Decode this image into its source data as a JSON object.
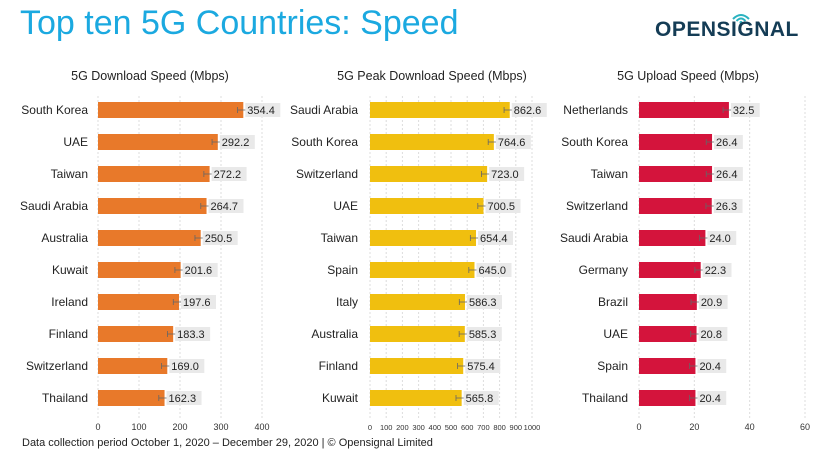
{
  "title": "Top ten 5G Countries: Speed",
  "brand": {
    "name": "OPENSIGNAL"
  },
  "footer": "Data collection period October 1, 2020 – December 29, 2020  |  © Opensignal Limited",
  "chart_data": [
    {
      "type": "bar",
      "orientation": "horizontal",
      "title": "5G Download Speed (Mbps)",
      "categories": [
        "South Korea",
        "UAE",
        "Taiwan",
        "Saudi Arabia",
        "Australia",
        "Kuwait",
        "Ireland",
        "Finland",
        "Switzerland",
        "Thailand"
      ],
      "values": [
        354.4,
        292.2,
        272.2,
        264.7,
        250.5,
        201.6,
        197.6,
        183.3,
        169.0,
        162.3
      ],
      "labels": [
        "354.4",
        "292.2",
        "272.2",
        "264.7",
        "250.5",
        "201.6",
        "197.6",
        "183.3",
        "169.0",
        "162.3"
      ],
      "xlim": [
        0,
        400
      ],
      "ticks": [
        0,
        100,
        200,
        300,
        400
      ],
      "color": "#e8792a",
      "error_bars": true,
      "grid": true
    },
    {
      "type": "bar",
      "orientation": "horizontal",
      "title": "5G Peak Download Speed (Mbps)",
      "categories": [
        "Saudi Arabia",
        "South Korea",
        "Switzerland",
        "UAE",
        "Taiwan",
        "Spain",
        "Italy",
        "Australia",
        "Finland",
        "Kuwait"
      ],
      "values": [
        862.6,
        764.6,
        723.0,
        700.5,
        654.4,
        645.0,
        586.3,
        585.3,
        575.4,
        565.8
      ],
      "labels": [
        "862.6",
        "764.6",
        "723.0",
        "700.5",
        "654.4",
        "645.0",
        "586.3",
        "585.3",
        "575.4",
        "565.8"
      ],
      "xlim": [
        0,
        1000
      ],
      "ticks": [
        0,
        100,
        200,
        300,
        400,
        500,
        600,
        700,
        800,
        900,
        1000
      ],
      "color": "#f0bf0f",
      "error_bars": true,
      "grid": true
    },
    {
      "type": "bar",
      "orientation": "horizontal",
      "title": "5G Upload Speed (Mbps)",
      "categories": [
        "Netherlands",
        "South Korea",
        "Taiwan",
        "Switzerland",
        "Saudi Arabia",
        "Germany",
        "Brazil",
        "UAE",
        "Spain",
        "Thailand"
      ],
      "values": [
        32.5,
        26.4,
        26.4,
        26.3,
        24.0,
        22.3,
        20.9,
        20.8,
        20.4,
        20.4
      ],
      "labels": [
        "32.5",
        "26.4",
        "26.4",
        "26.3",
        "24.0",
        "22.3",
        "20.9",
        "20.8",
        "20.4",
        "20.4"
      ],
      "xlim": [
        0,
        60
      ],
      "ticks": [
        0,
        20,
        40,
        60
      ],
      "color": "#d4143c",
      "error_bars": true,
      "grid": true
    }
  ]
}
